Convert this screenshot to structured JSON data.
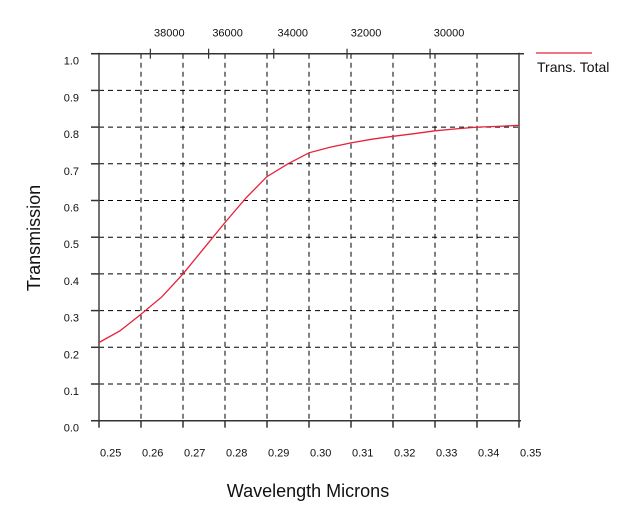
{
  "chart_data": {
    "type": "line",
    "xlabel": "Wavelength Microns",
    "ylabel": "Transmission",
    "xlim": [
      0.25,
      0.35
    ],
    "ylim": [
      0.0,
      1.0
    ],
    "x_ticks": [
      "0.25",
      "0.26",
      "0.27",
      "0.28",
      "0.29",
      "0.30",
      "0.31",
      "0.32",
      "0.33",
      "0.34",
      "0.35"
    ],
    "y_ticks": [
      "0.0",
      "0.1",
      "0.2",
      "0.3",
      "0.4",
      "0.5",
      "0.6",
      "0.7",
      "0.8",
      "0.9",
      "1.0"
    ],
    "top_axis_ticks": [
      "38000",
      "36000",
      "34000",
      "32000",
      "30000"
    ],
    "grid": true,
    "legend_position": "top-right",
    "series": [
      {
        "name": "Trans. Total",
        "color": "#e8203a",
        "x": [
          0.25,
          0.255,
          0.26,
          0.265,
          0.27,
          0.275,
          0.28,
          0.285,
          0.29,
          0.295,
          0.3,
          0.305,
          0.31,
          0.315,
          0.32,
          0.325,
          0.33,
          0.335,
          0.34,
          0.345,
          0.35
        ],
        "y": [
          0.213,
          0.245,
          0.29,
          0.338,
          0.4,
          0.47,
          0.54,
          0.607,
          0.665,
          0.7,
          0.73,
          0.745,
          0.757,
          0.767,
          0.775,
          0.782,
          0.79,
          0.795,
          0.8,
          0.802,
          0.805
        ]
      }
    ]
  }
}
